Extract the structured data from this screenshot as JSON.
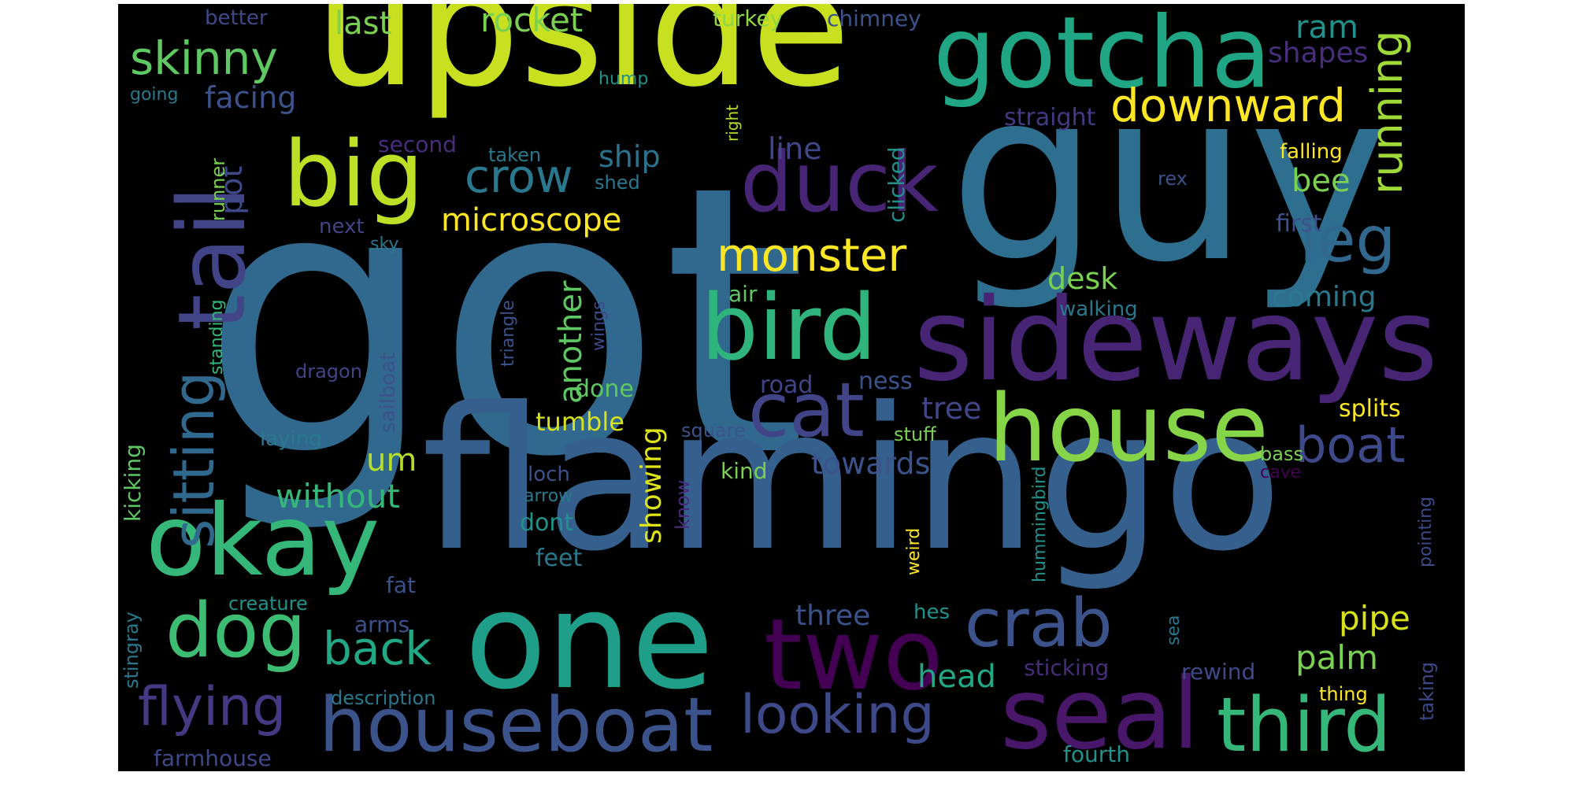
{
  "title": "",
  "background": "#000000",
  "colormap": "viridis",
  "words": [
    {
      "text": "got",
      "color": "#31688e"
    },
    {
      "text": "flamingo",
      "color": "#35608d"
    },
    {
      "text": "guy",
      "color": "#2e6e8e"
    },
    {
      "text": "upside",
      "color": "#c8e020"
    },
    {
      "text": "sideways",
      "color": "#482475"
    },
    {
      "text": "one",
      "color": "#1f9e89"
    },
    {
      "text": "gotcha",
      "color": "#21a685"
    },
    {
      "text": "house",
      "color": "#86d549"
    },
    {
      "text": "okay",
      "color": "#35b779"
    },
    {
      "text": "tail",
      "color": "#414487"
    },
    {
      "text": "seal",
      "color": "#481769"
    },
    {
      "text": "bird",
      "color": "#2fb47c"
    },
    {
      "text": "two",
      "color": "#440154"
    },
    {
      "text": "houseboat",
      "color": "#3b528b"
    },
    {
      "text": "third",
      "color": "#35b779"
    },
    {
      "text": "big",
      "color": "#bddf26"
    },
    {
      "text": "duck",
      "color": "#482475"
    },
    {
      "text": "dog",
      "color": "#3dbc74"
    },
    {
      "text": "cat",
      "color": "#414487"
    },
    {
      "text": "crab",
      "color": "#3b528b"
    },
    {
      "text": "sitting",
      "color": "#31688e"
    },
    {
      "text": "leg",
      "color": "#31688e"
    },
    {
      "text": "flying",
      "color": "#443983"
    },
    {
      "text": "looking",
      "color": "#3e4989"
    },
    {
      "text": "boat",
      "color": "#3e4989"
    },
    {
      "text": "downward",
      "color": "#fde725"
    },
    {
      "text": "monster",
      "color": "#fde725"
    },
    {
      "text": "skinny",
      "color": "#5ec962"
    },
    {
      "text": "running",
      "color": "#a0da39"
    },
    {
      "text": "back",
      "color": "#22a884"
    },
    {
      "text": "crow",
      "color": "#2a788e"
    },
    {
      "text": "without",
      "color": "#35b779"
    },
    {
      "text": "microscope",
      "color": "#fde725"
    },
    {
      "text": "rocket",
      "color": "#7ad151"
    },
    {
      "text": "last",
      "color": "#7ad151"
    },
    {
      "text": "facing",
      "color": "#3b528b"
    },
    {
      "text": "ship",
      "color": "#2c728e"
    },
    {
      "text": "line",
      "color": "#404688"
    },
    {
      "text": "pot",
      "color": "#3e4989"
    },
    {
      "text": "ram",
      "color": "#21918c"
    },
    {
      "text": "shapes",
      "color": "#472d7b"
    },
    {
      "text": "bee",
      "color": "#7ad151"
    },
    {
      "text": "desk",
      "color": "#7ad151"
    },
    {
      "text": "coming",
      "color": "#2a788e"
    },
    {
      "text": "another",
      "color": "#5ec962"
    },
    {
      "text": "palm",
      "color": "#7ad151"
    },
    {
      "text": "pipe",
      "color": "#d8e219"
    },
    {
      "text": "head",
      "color": "#22a884"
    },
    {
      "text": "um",
      "color": "#b5de2b"
    },
    {
      "text": "tree",
      "color": "#404688"
    },
    {
      "text": "towards",
      "color": "#3b528b"
    },
    {
      "text": "showing",
      "color": "#dde318"
    },
    {
      "text": "three",
      "color": "#3b528b"
    },
    {
      "text": "tumble",
      "color": "#d8e219"
    },
    {
      "text": "done",
      "color": "#5ec962"
    },
    {
      "text": "dont",
      "color": "#21918c"
    },
    {
      "text": "feet",
      "color": "#2a788e"
    },
    {
      "text": "fat",
      "color": "#3b528b"
    },
    {
      "text": "arms",
      "color": "#3b528b"
    },
    {
      "text": "kicking",
      "color": "#5ec962"
    },
    {
      "text": "better",
      "color": "#3e4989"
    },
    {
      "text": "turkey",
      "color": "#90d743"
    },
    {
      "text": "chimney",
      "color": "#3b528b"
    },
    {
      "text": "going",
      "color": "#2a788e"
    },
    {
      "text": "hump",
      "color": "#21918c"
    },
    {
      "text": "right",
      "color": "#b5de2b"
    },
    {
      "text": "straight",
      "color": "#443983"
    },
    {
      "text": "falling",
      "color": "#fde725"
    },
    {
      "text": "second",
      "color": "#472d7b"
    },
    {
      "text": "taken",
      "color": "#2a788e"
    },
    {
      "text": "shed",
      "color": "#2a788e"
    },
    {
      "text": "clicked",
      "color": "#21918c"
    },
    {
      "text": "rex",
      "color": "#3b528b"
    },
    {
      "text": "first",
      "color": "#3b528b"
    },
    {
      "text": "next",
      "color": "#414487"
    },
    {
      "text": "sky",
      "color": "#2a788e"
    },
    {
      "text": "runner",
      "color": "#7ad151"
    },
    {
      "text": "triangle",
      "color": "#3b528b"
    },
    {
      "text": "air",
      "color": "#5ec962"
    },
    {
      "text": "walking",
      "color": "#2a788e"
    },
    {
      "text": "standing",
      "color": "#35b779"
    },
    {
      "text": "dragon",
      "color": "#414487"
    },
    {
      "text": "sailboat",
      "color": "#3b528b"
    },
    {
      "text": "wings",
      "color": "#3e4989"
    },
    {
      "text": "road",
      "color": "#414487"
    },
    {
      "text": "ness",
      "color": "#3b528b"
    },
    {
      "text": "splits",
      "color": "#fde725"
    },
    {
      "text": "laying",
      "color": "#2a788e"
    },
    {
      "text": "square",
      "color": "#3b528b"
    },
    {
      "text": "stuff",
      "color": "#7ad151"
    },
    {
      "text": "bass",
      "color": "#7ad151"
    },
    {
      "text": "cave",
      "color": "#440154"
    },
    {
      "text": "loch",
      "color": "#3b528b"
    },
    {
      "text": "arrow",
      "color": "#2a788e"
    },
    {
      "text": "kind",
      "color": "#7ad151"
    },
    {
      "text": "know",
      "color": "#472d7b"
    },
    {
      "text": "weird",
      "color": "#fde725"
    },
    {
      "text": "hummingbird",
      "color": "#21918c"
    },
    {
      "text": "pointing",
      "color": "#3e4989"
    },
    {
      "text": "stingray",
      "color": "#2a788e"
    },
    {
      "text": "creature",
      "color": "#21918c"
    },
    {
      "text": "hes",
      "color": "#21918c"
    },
    {
      "text": "sticking",
      "color": "#472d7b"
    },
    {
      "text": "rewind",
      "color": "#3e4989"
    },
    {
      "text": "sea",
      "color": "#2a788e"
    },
    {
      "text": "taking",
      "color": "#3e4989"
    },
    {
      "text": "thing",
      "color": "#fde725"
    },
    {
      "text": "description",
      "color": "#2a788e"
    },
    {
      "text": "farmhouse",
      "color": "#3e4989"
    },
    {
      "text": "fourth",
      "color": "#21918c"
    }
  ]
}
